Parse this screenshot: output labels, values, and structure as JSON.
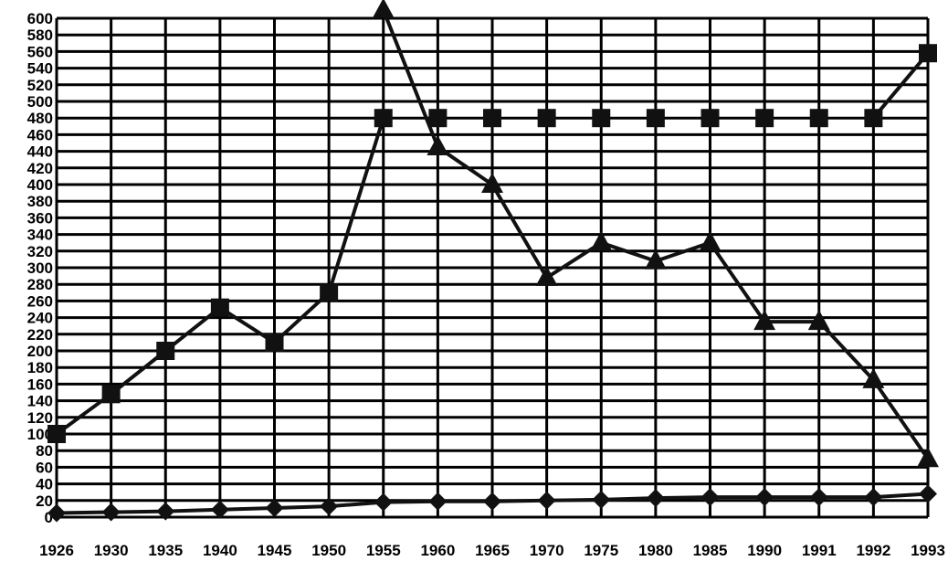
{
  "chart_data": {
    "type": "line",
    "title": "",
    "xlabel": "",
    "ylabel": "",
    "x": [
      "1926",
      "1930",
      "1935",
      "1940",
      "1945",
      "1950",
      "1955",
      "1960",
      "1965",
      "1970",
      "1975",
      "1980",
      "1985",
      "1990",
      "1991",
      "1992",
      "1993"
    ],
    "ylim": [
      0,
      600
    ],
    "ytick_step": 20,
    "grid": true,
    "legend": "none",
    "series": [
      {
        "marker": "square",
        "line": "solid-then-none",
        "values": [
          100,
          148,
          200,
          252,
          210,
          270,
          480,
          480,
          480,
          480,
          480,
          480,
          480,
          480,
          480,
          480,
          558
        ],
        "connected_segments": [
          [
            0,
            6
          ],
          [
            15,
            16
          ]
        ]
      },
      {
        "marker": "triangle",
        "line": "solid",
        "values": [
          null,
          null,
          null,
          null,
          null,
          null,
          610,
          445,
          400,
          288,
          330,
          308,
          330,
          235,
          235,
          165,
          70
        ]
      },
      {
        "marker": "diamond",
        "line": "solid",
        "values": [
          5,
          6,
          7,
          9,
          11,
          13,
          18,
          19,
          19,
          20,
          21,
          23,
          24,
          24,
          24,
          24,
          28
        ]
      }
    ],
    "line_color": "#111111",
    "grid_color": "#000000"
  }
}
